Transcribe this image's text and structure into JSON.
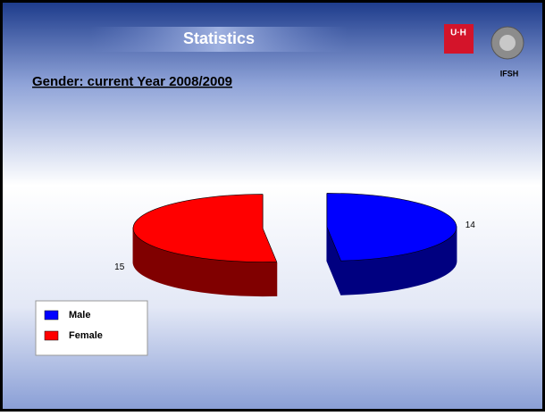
{
  "logos": [
    "U·H",
    "IFSH"
  ],
  "chart_data": {
    "type": "pie",
    "title": "Statistics",
    "subtitle": "Gender: current Year 2008/2009",
    "categories": [
      "Male",
      "Female"
    ],
    "values": [
      14,
      15
    ],
    "colors": [
      "#0000ff",
      "#ff0000"
    ],
    "side_colors": [
      "#000080",
      "#800000"
    ],
    "legend": "bottom-left",
    "exploded": true,
    "three_d": true
  }
}
